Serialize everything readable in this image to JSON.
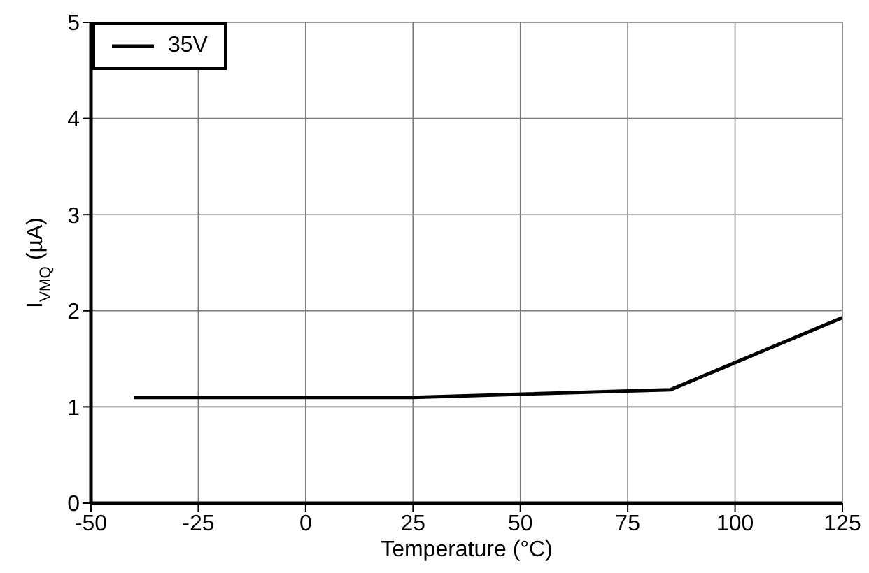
{
  "chart_data": {
    "type": "line",
    "xlabel": "Temperature (°C)",
    "ylabel": "I$_{VMQ}$ (µA)",
    "series": [
      {
        "name": "35V",
        "color": "#000000",
        "x": [
          -40,
          25,
          85,
          125
        ],
        "values": [
          1.1,
          1.1,
          1.18,
          1.93
        ]
      }
    ],
    "xlim": [
      -50,
      125
    ],
    "xticks": [
      -50,
      -25,
      0,
      25,
      50,
      75,
      100,
      125
    ],
    "ylim": [
      0,
      5
    ],
    "yticks": [
      0,
      1,
      2,
      3,
      4,
      5
    ],
    "grid": true,
    "legend": "top left",
    "marker": "none",
    "line_style": "solid"
  }
}
